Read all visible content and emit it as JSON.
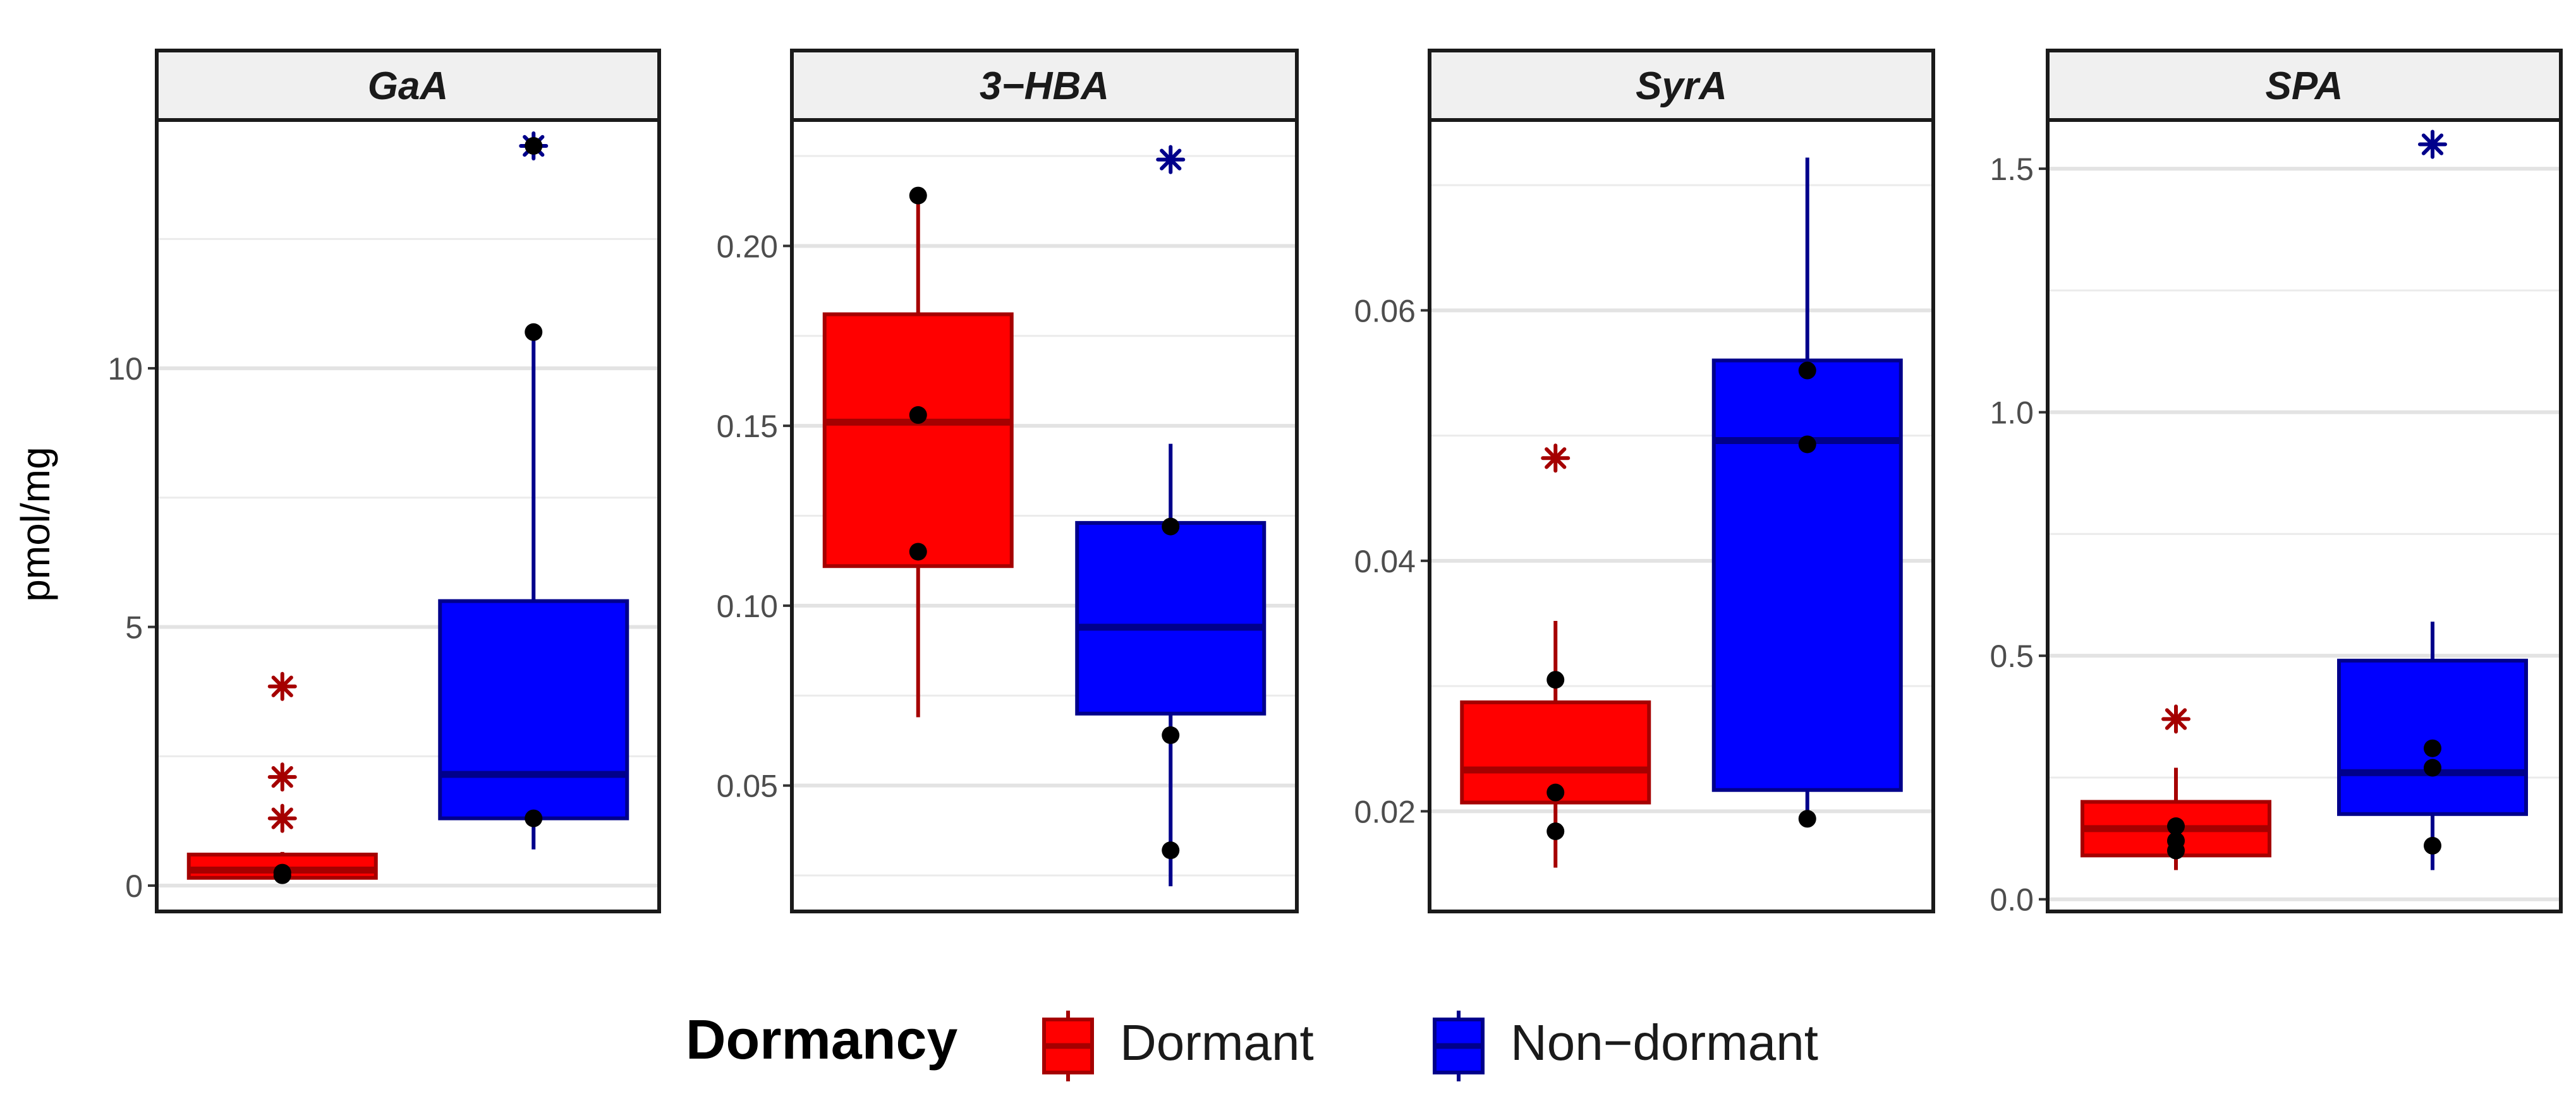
{
  "chart_data": {
    "type": "box",
    "facet_count": 4,
    "ylabel": "pmol/mg",
    "legend": {
      "title": "Dormancy",
      "position": "bottom",
      "entries": [
        {
          "label": "Dormant",
          "fill": "#ff0000",
          "stroke": "#a50000"
        },
        {
          "label": "Non−dormant",
          "fill": "#0000ff",
          "stroke": "#00008b"
        }
      ]
    },
    "outlier_color_dormant": "#a50000",
    "outlier_color_nondormant": "#00008b",
    "point_color": "#000000",
    "grid": true,
    "panels": [
      {
        "title": "GaA",
        "ylim": [
          -0.5,
          14.8
        ],
        "yticks": [
          0,
          5,
          10
        ],
        "ytick_labels": [
          "0",
          "5",
          "10"
        ],
        "groups": [
          {
            "name": "Dormant",
            "lower_whisker": 0.1,
            "q1": 0.15,
            "median": 0.3,
            "q3": 0.6,
            "upper_whisker": 0.65,
            "points": [
              0.25,
              0.2
            ],
            "outliers": [
              3.85,
              2.1,
              1.3
            ]
          },
          {
            "name": "Non−dormant",
            "lower_whisker": 0.7,
            "q1": 1.3,
            "median": 2.15,
            "q3": 5.5,
            "upper_whisker": 10.7,
            "points": [
              10.7,
              1.3,
              14.3
            ],
            "outliers": [
              14.3
            ]
          }
        ]
      },
      {
        "title": "3−HBA",
        "ylim": [
          0.015,
          0.235
        ],
        "yticks": [
          0.05,
          0.1,
          0.15,
          0.2
        ],
        "ytick_labels": [
          "0.05",
          "0.10",
          "0.15",
          "0.20"
        ],
        "groups": [
          {
            "name": "Dormant",
            "lower_whisker": 0.069,
            "q1": 0.111,
            "median": 0.151,
            "q3": 0.181,
            "upper_whisker": 0.214,
            "points": [
              0.214,
              0.153,
              0.115
            ],
            "outliers": []
          },
          {
            "name": "Non−dormant",
            "lower_whisker": 0.022,
            "q1": 0.07,
            "median": 0.094,
            "q3": 0.123,
            "upper_whisker": 0.145,
            "points": [
              0.122,
              0.064,
              0.032
            ],
            "outliers": [
              0.224
            ]
          }
        ]
      },
      {
        "title": "SyrA",
        "ylim": [
          0.012,
          0.0752
        ],
        "yticks": [
          0.02,
          0.04,
          0.06
        ],
        "ytick_labels": [
          "0.02",
          "0.04",
          "0.06"
        ],
        "groups": [
          {
            "name": "Dormant",
            "lower_whisker": 0.0155,
            "q1": 0.0207,
            "median": 0.0233,
            "q3": 0.0287,
            "upper_whisker": 0.0352,
            "points": [
              0.0305,
              0.0215,
              0.0184
            ],
            "outliers": [
              0.0482
            ]
          },
          {
            "name": "Non−dormant",
            "lower_whisker": 0.0197,
            "q1": 0.0217,
            "median": 0.0496,
            "q3": 0.056,
            "upper_whisker": 0.0722,
            "points": [
              0.0552,
              0.0493,
              0.0194
            ],
            "outliers": []
          }
        ]
      },
      {
        "title": "SPA",
        "ylim": [
          -0.025,
          1.6
        ],
        "yticks": [
          0,
          0.5,
          1,
          1.5
        ],
        "ytick_labels": [
          "0.0",
          "0.5",
          "1.0",
          "1.5"
        ],
        "groups": [
          {
            "name": "Dormant",
            "lower_whisker": 0.06,
            "q1": 0.09,
            "median": 0.145,
            "q3": 0.2,
            "upper_whisker": 0.27,
            "points": [
              0.15,
              0.12,
              0.1
            ],
            "outliers": [
              0.37
            ]
          },
          {
            "name": "Non−dormant",
            "lower_whisker": 0.06,
            "q1": 0.175,
            "median": 0.26,
            "q3": 0.49,
            "upper_whisker": 0.57,
            "points": [
              0.31,
              0.27,
              0.11
            ],
            "outliers": [
              1.55
            ]
          }
        ]
      }
    ]
  }
}
